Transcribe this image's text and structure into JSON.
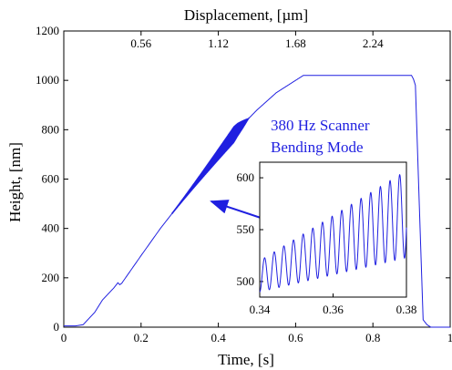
{
  "chart_data": [
    {
      "type": "line",
      "xlabel": "Time, [s]",
      "ylabel": "Height, [nm]",
      "top_xlabel": "Displacement, [µm]",
      "xlim": [
        0,
        1
      ],
      "ylim": [
        0,
        1200
      ],
      "x_ticks": [
        "0",
        "0.2",
        "0.4",
        "0.6",
        "0.8",
        "1"
      ],
      "y_ticks": [
        "0",
        "200",
        "400",
        "600",
        "800",
        "1000",
        "1200"
      ],
      "top_ticks": [
        {
          "label": "0.56",
          "at_time": 0.2
        },
        {
          "label": "1.12",
          "at_time": 0.4
        },
        {
          "label": "1.68",
          "at_time": 0.6
        },
        {
          "label": "2.24",
          "at_time": 0.8
        }
      ],
      "color": "#1f1fe0",
      "series": [
        {
          "x": [
            0,
            0.03,
            0.05,
            0.08,
            0.1,
            0.13,
            0.14,
            0.145,
            0.15,
            0.2,
            0.25,
            0.3,
            0.35,
            0.4,
            0.45,
            0.5,
            0.55,
            0.6,
            0.62,
            0.63,
            0.7,
            0.8,
            0.89,
            0.9,
            0.905,
            0.91,
            0.92,
            0.93,
            0.94,
            0.95,
            0.96,
            0.98,
            1.0
          ],
          "y": [
            5,
            5,
            10,
            60,
            110,
            160,
            180,
            172,
            178,
            290,
            400,
            500,
            600,
            700,
            800,
            880,
            950,
            1000,
            1020,
            1020,
            1020,
            1020,
            1020,
            1020,
            1005,
            980,
            500,
            30,
            10,
            0,
            0,
            0,
            0
          ],
          "envelope_time": [
            0.28,
            0.48
          ],
          "envelope_amplitude_nm": [
            3,
            45
          ]
        }
      ],
      "annotations": [
        "380 Hz Scanner",
        "Bending Mode"
      ]
    },
    {
      "type": "line",
      "inset": true,
      "xlim": [
        0.34,
        0.38
      ],
      "ylim": [
        485,
        615
      ],
      "x_ticks": [
        "0.34",
        "0.36",
        "0.38"
      ],
      "y_ticks": [
        "500",
        "550",
        "600"
      ],
      "color": "#1f1fe0",
      "series": [
        {
          "frequency_hz": 380,
          "time_range": [
            0.34,
            0.38
          ],
          "center_start": 505,
          "center_end": 565,
          "amplitude_start": 15,
          "amplitude_end": 42
        }
      ]
    }
  ]
}
